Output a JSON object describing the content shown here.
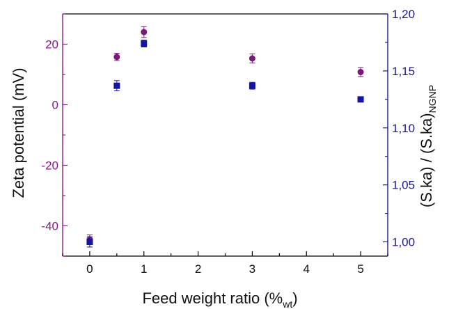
{
  "chart_data": {
    "type": "scatter",
    "xlabel": "Feed weight ratio (%",
    "xlabel_sub": "wt",
    "xlabel_end": ")",
    "ylabel_left": "Zeta potential (mV)",
    "ylabel_right": "(S.ka) / (S.ka)",
    "ylabel_right_sub": "NGNP",
    "xlim": [
      -0.5,
      5.5
    ],
    "ylim_left": [
      -50,
      30
    ],
    "ylim_right": [
      0.9875,
      1.2
    ],
    "x_ticks": [
      0,
      1,
      2,
      3,
      4,
      5
    ],
    "x_tick_labels": [
      "0",
      "1",
      "2",
      "3",
      "4",
      "5"
    ],
    "y_left_ticks": [
      -40,
      -20,
      0,
      20
    ],
    "y_left_tick_labels": [
      "-40",
      "-20",
      "0",
      "20"
    ],
    "y_right_ticks": [
      1.0,
      1.05,
      1.1,
      1.15,
      1.2
    ],
    "y_right_tick_labels": [
      "1,00",
      "1,05",
      "1,10",
      "1,15",
      "1,20"
    ],
    "grid": false,
    "colors": {
      "left_axis": "#8b1a89",
      "right_axis": "#1c1a8f",
      "circle_series": "#7a1a78",
      "square_series": "#1414a0"
    },
    "series": [
      {
        "axis": "left",
        "marker": "circle",
        "points": [
          {
            "x": 0,
            "y": -44.5,
            "err": 1.5
          },
          {
            "x": 0.5,
            "y": 15.8,
            "err": 1.2
          },
          {
            "x": 1,
            "y": 24.0,
            "err": 1.8
          },
          {
            "x": 3,
            "y": 15.3,
            "err": 1.5
          },
          {
            "x": 5,
            "y": 10.8,
            "err": 1.5
          }
        ]
      },
      {
        "axis": "right",
        "marker": "square",
        "points": [
          {
            "x": 0,
            "y": 1.0,
            "err": 0.0045
          },
          {
            "x": 0.5,
            "y": 1.137,
            "err": 0.0045
          },
          {
            "x": 1,
            "y": 1.174,
            "err": 0.003
          },
          {
            "x": 3,
            "y": 1.137,
            "err": 0.003
          },
          {
            "x": 5,
            "y": 1.125,
            "err": 0.002
          }
        ]
      }
    ]
  }
}
